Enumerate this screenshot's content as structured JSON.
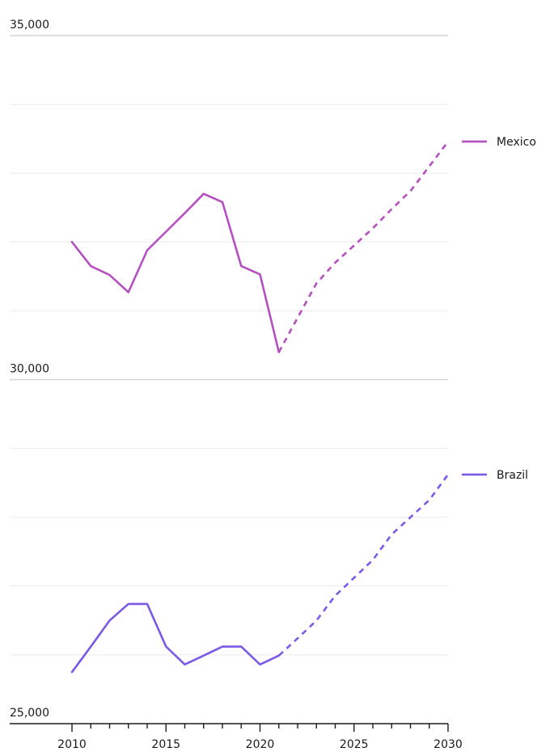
{
  "chart_data": {
    "type": "line",
    "title": "",
    "xlabel": "",
    "ylabel": "",
    "xlim": [
      2010,
      2030
    ],
    "x_ticks": [
      2010,
      2015,
      2020,
      2025,
      2030
    ],
    "y_ticks": [
      25000,
      30000,
      35000
    ],
    "y_tick_labels": [
      "25,000",
      "30,000",
      "35,000"
    ],
    "ylim": [
      25000,
      35000
    ],
    "grid": true,
    "legend": "right, at the end of each line",
    "forecast_from": 2021,
    "series": [
      {
        "name": "Mexico",
        "color": "#b64fbf",
        "x": [
          2010,
          2011,
          2012,
          2013,
          2014,
          2015,
          2016,
          2017,
          2018,
          2019,
          2020,
          2021,
          2022,
          2023,
          2024,
          2025,
          2026,
          2027,
          2028,
          2029,
          2030
        ],
        "y": [
          32000,
          31650,
          31520,
          31270,
          31880,
          32150,
          32420,
          32700,
          32580,
          31650,
          31530,
          30400,
          30900,
          31400,
          31700,
          31950,
          32200,
          32480,
          32740,
          33100,
          33460
        ]
      },
      {
        "name": "Brazil",
        "color": "#7b5be6",
        "x": [
          2010,
          2011,
          2012,
          2013,
          2014,
          2015,
          2016,
          2017,
          2018,
          2019,
          2020,
          2021,
          2022,
          2023,
          2024,
          2025,
          2026,
          2027,
          2028,
          2029,
          2030
        ],
        "y": [
          25750,
          26120,
          26500,
          26740,
          26740,
          26120,
          25860,
          25990,
          26120,
          26120,
          25860,
          25990,
          26240,
          26500,
          26860,
          27120,
          27380,
          27750,
          28000,
          28250,
          28620
        ]
      }
    ]
  }
}
